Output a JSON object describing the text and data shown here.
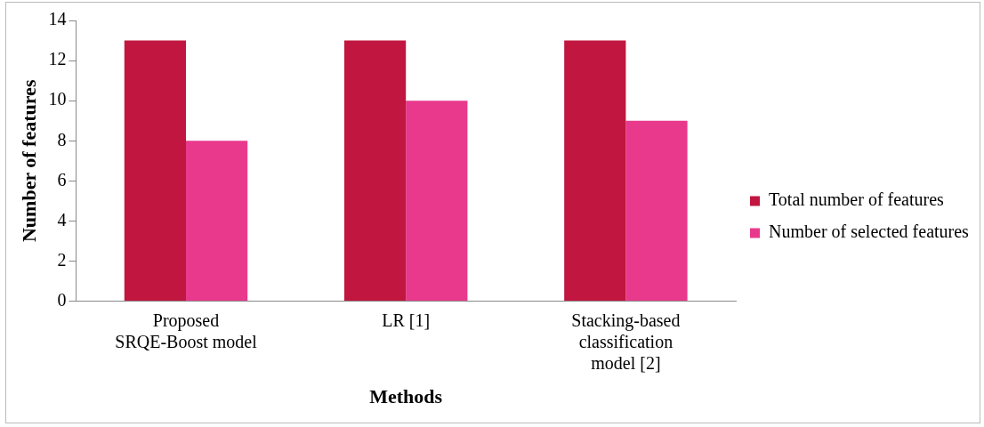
{
  "chart_data": {
    "type": "bar",
    "xlabel": "Methods",
    "ylabel": "Number of features",
    "categories": [
      "Proposed SRQE-Boost model",
      "LR [1]",
      "Stacking-based classification model [2]"
    ],
    "series": [
      {
        "name": "Total number of features",
        "color": "#c0163f",
        "values": [
          13,
          13,
          13
        ]
      },
      {
        "name": "Number of selected features",
        "color": "#e8398c",
        "values": [
          8,
          10,
          9
        ]
      }
    ],
    "ylim": [
      0,
      14
    ],
    "yticks": [
      0,
      2,
      4,
      6,
      8,
      10,
      12,
      14
    ],
    "grid": false,
    "legend": "right"
  }
}
